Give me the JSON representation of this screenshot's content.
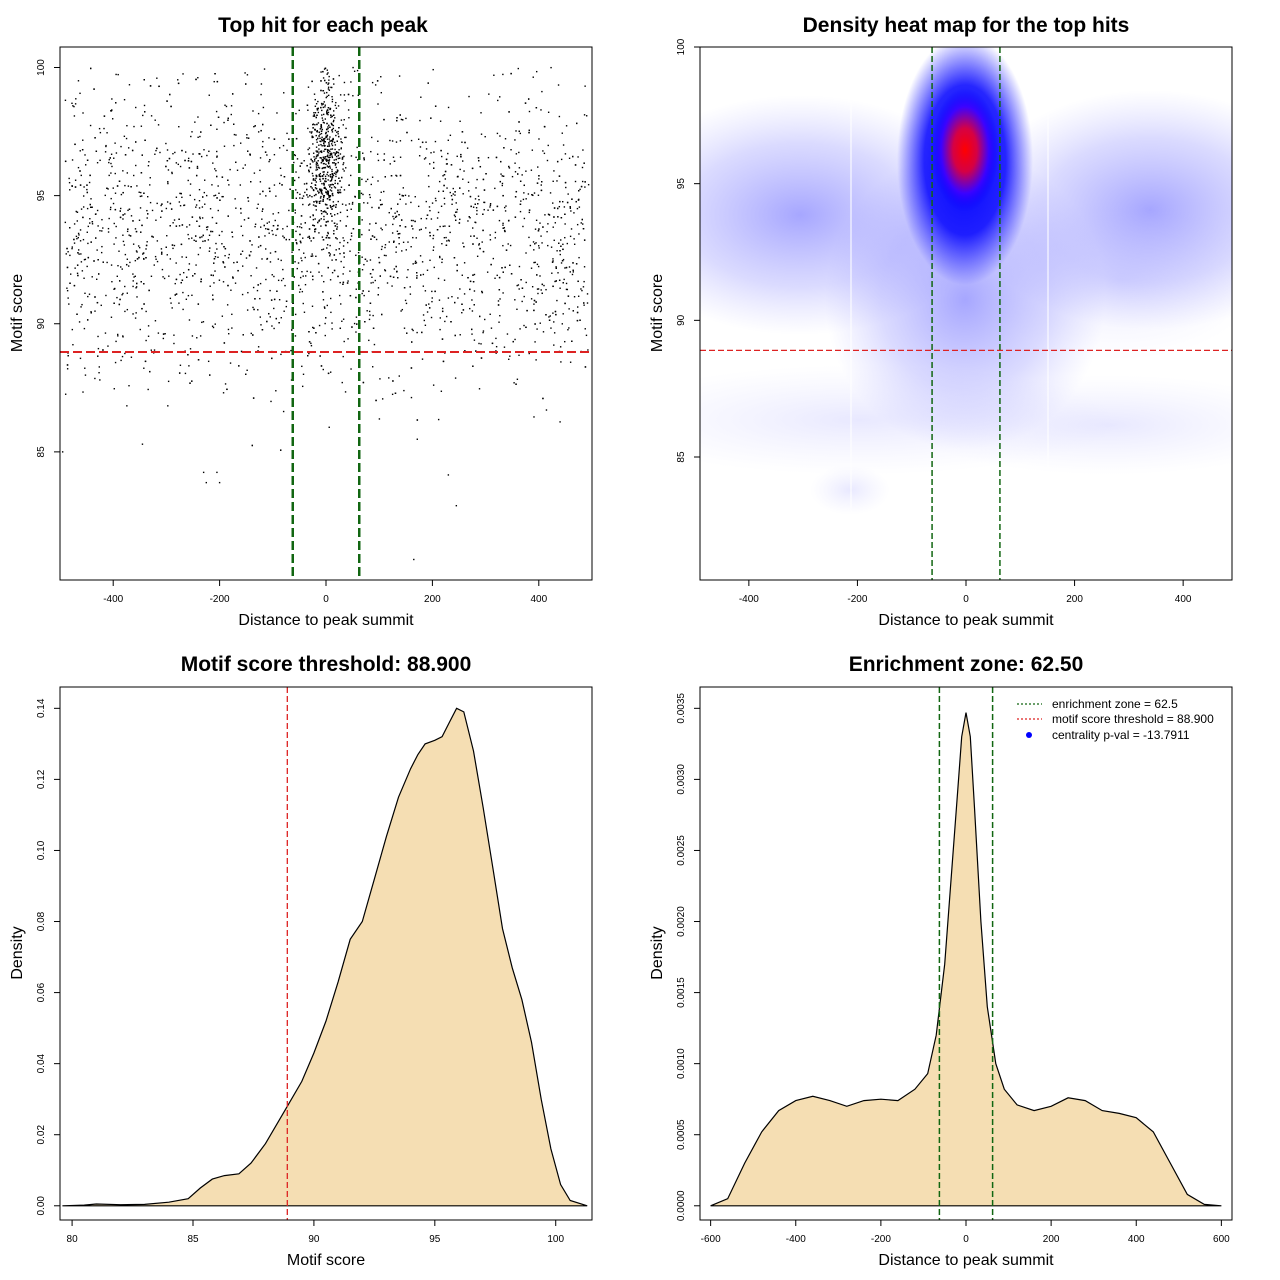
{
  "chart_data": [
    {
      "type": "scatter",
      "title": "Top hit for each peak",
      "xlabel": "Distance to peak summit",
      "ylabel": "Motif score",
      "xlim": [
        -500,
        500
      ],
      "ylim": [
        80,
        100.8
      ],
      "xticks": [
        -400,
        -200,
        0,
        200,
        400
      ],
      "yticks": [
        85,
        90,
        95,
        100
      ],
      "hline": 88.9,
      "vlines": [
        -62.5,
        62.5
      ],
      "point_count": 3200,
      "outliers": [
        [
          -230,
          84.2
        ],
        [
          -205,
          84.2
        ],
        [
          -225,
          83.8
        ],
        [
          -200,
          83.8
        ],
        [
          230,
          84.1
        ],
        [
          245,
          82.9
        ],
        [
          165,
          80.8
        ],
        [
          -345,
          85.3
        ],
        [
          -495,
          85.0
        ]
      ],
      "colors": {
        "points": "#000000",
        "hline": "#dd2222",
        "vlines": "#116611"
      }
    },
    {
      "type": "heatmap",
      "title": "Density heat map for the top hits",
      "xlabel": "Distance to peak summit",
      "ylabel": "Motif score",
      "xlim": [
        -490,
        490
      ],
      "ylim": [
        80.5,
        100
      ],
      "xticks": [
        -400,
        -200,
        0,
        200,
        400
      ],
      "yticks": [
        85,
        90,
        95,
        100
      ],
      "hline": 88.9,
      "vlines": [
        -62.5,
        62.5
      ],
      "peak": {
        "x": 0,
        "y": 96.3
      },
      "colors": {
        "low": "#ffffff",
        "mid": "#0000ff",
        "high": "#ff0000",
        "hline": "#dd2222",
        "vlines": "#116611"
      }
    },
    {
      "type": "area",
      "title": "Motif score threshold: 88.900",
      "xlabel": "Motif score",
      "ylabel": "Density",
      "xlim": [
        79.5,
        101.5
      ],
      "ylim": [
        -0.004,
        0.146
      ],
      "xticks": [
        80,
        85,
        90,
        95,
        100
      ],
      "yticks": [
        0.0,
        0.02,
        0.04,
        0.06,
        0.08,
        0.1,
        0.12,
        0.14
      ],
      "ytick_labels": [
        "0.00",
        "0.02",
        "0.04",
        "0.06",
        "0.08",
        "0.10",
        "0.12",
        "0.14"
      ],
      "vline": 88.9,
      "x": [
        79.6,
        80.5,
        81.0,
        82.0,
        83.0,
        84.0,
        84.8,
        85.3,
        85.8,
        86.3,
        86.9,
        87.4,
        88.0,
        88.9,
        89.5,
        90.0,
        90.5,
        91.0,
        91.5,
        92.0,
        92.5,
        93.0,
        93.5,
        94.0,
        94.3,
        94.6,
        95.0,
        95.3,
        95.6,
        95.9,
        96.2,
        96.6,
        97.0,
        97.4,
        97.8,
        98.2,
        98.6,
        99.0,
        99.4,
        99.8,
        100.2,
        100.6,
        101.3
      ],
      "y": [
        0.0,
        0.0002,
        0.0005,
        0.0003,
        0.0004,
        0.001,
        0.002,
        0.005,
        0.0075,
        0.0085,
        0.009,
        0.012,
        0.0175,
        0.028,
        0.035,
        0.043,
        0.052,
        0.063,
        0.075,
        0.08,
        0.092,
        0.104,
        0.115,
        0.123,
        0.127,
        0.13,
        0.131,
        0.132,
        0.136,
        0.14,
        0.139,
        0.128,
        0.112,
        0.095,
        0.078,
        0.067,
        0.058,
        0.046,
        0.03,
        0.016,
        0.006,
        0.0015,
        0.0
      ],
      "colors": {
        "fill": "#f5deb3",
        "line": "#000000",
        "vline": "#dd2222"
      }
    },
    {
      "type": "area",
      "title": "Enrichment zone: 62.50",
      "xlabel": "Distance to peak summit",
      "ylabel": "Density",
      "xlim": [
        -625,
        625
      ],
      "ylim": [
        -0.0001,
        0.00365
      ],
      "xticks": [
        -600,
        -400,
        -200,
        0,
        200,
        400,
        600
      ],
      "yticks": [
        0.0,
        0.0005,
        0.001,
        0.0015,
        0.002,
        0.0025,
        0.003,
        0.0035
      ],
      "ytick_labels": [
        "0.0000",
        "0.0005",
        "0.0010",
        "0.0015",
        "0.0020",
        "0.0025",
        "0.0030",
        "0.0035"
      ],
      "vlines": [
        -62.5,
        62.5
      ],
      "x": [
        -600,
        -560,
        -520,
        -480,
        -440,
        -400,
        -360,
        -320,
        -280,
        -240,
        -200,
        -160,
        -120,
        -90,
        -70,
        -50,
        -35,
        -20,
        -10,
        0,
        10,
        20,
        35,
        50,
        70,
        90,
        120,
        160,
        200,
        240,
        280,
        320,
        360,
        400,
        440,
        480,
        520,
        560,
        600
      ],
      "y": [
        0.0,
        5e-05,
        0.0003,
        0.00052,
        0.00067,
        0.00074,
        0.00077,
        0.00074,
        0.0007,
        0.00074,
        0.00075,
        0.00074,
        0.00082,
        0.00093,
        0.0012,
        0.0017,
        0.0023,
        0.0029,
        0.0033,
        0.00347,
        0.0033,
        0.0028,
        0.002,
        0.0014,
        0.001,
        0.00082,
        0.00071,
        0.00067,
        0.0007,
        0.00076,
        0.00074,
        0.00067,
        0.00065,
        0.00062,
        0.00052,
        0.0003,
        8e-05,
        1e-05,
        0.0
      ],
      "legend": {
        "position": "top-right",
        "entries": [
          {
            "label": "enrichment zone = 62.5",
            "color": "#116611",
            "style": "dotted"
          },
          {
            "label": "motif score threshold = 88.900",
            "color": "#dd2222",
            "style": "dotted"
          },
          {
            "label": "centrality p-val = -13.7911",
            "color": "#0000ff",
            "style": "point"
          }
        ]
      },
      "colors": {
        "fill": "#f5deb3",
        "line": "#000000",
        "vlines": "#116611"
      }
    }
  ]
}
